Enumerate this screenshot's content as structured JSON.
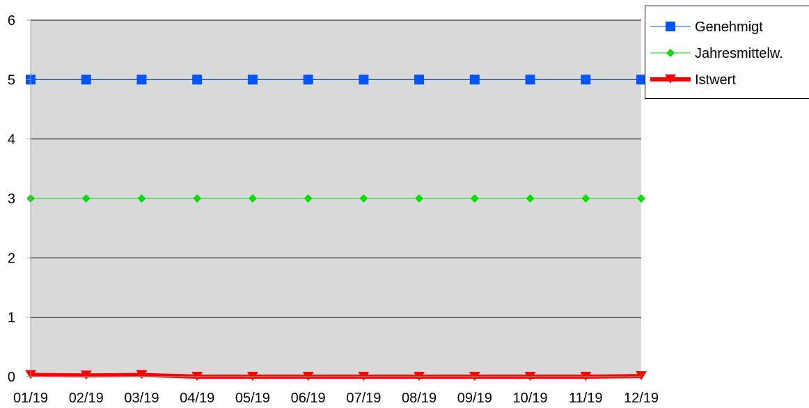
{
  "chart_data": {
    "type": "line",
    "title": "",
    "xlabel": "",
    "ylabel": "",
    "categories": [
      "01/19",
      "02/19",
      "03/19",
      "04/19",
      "05/19",
      "06/19",
      "07/19",
      "08/19",
      "09/19",
      "10/19",
      "11/19",
      "12/19"
    ],
    "ylim": [
      0,
      6
    ],
    "yticks": [
      0,
      1,
      2,
      3,
      4,
      5,
      6
    ],
    "grid": true,
    "plot_background": "#d9d9d9",
    "legend_position": "top-right",
    "series": [
      {
        "name": "Genehmigt",
        "color": "#0055ff",
        "marker": "square",
        "values": [
          5,
          5,
          5,
          5,
          5,
          5,
          5,
          5,
          5,
          5,
          5,
          5
        ]
      },
      {
        "name": "Jahresmittelw.",
        "color": "#00e000",
        "marker": "diamond",
        "values": [
          3,
          3,
          3,
          3,
          3,
          3,
          3,
          3,
          3,
          3,
          3,
          3
        ]
      },
      {
        "name": "Istwert",
        "color": "#ff0000",
        "marker": "triangle-down",
        "values": [
          0.03,
          0.02,
          0.03,
          0,
          0,
          0,
          0,
          0,
          0,
          0,
          0,
          0.01
        ]
      }
    ]
  }
}
